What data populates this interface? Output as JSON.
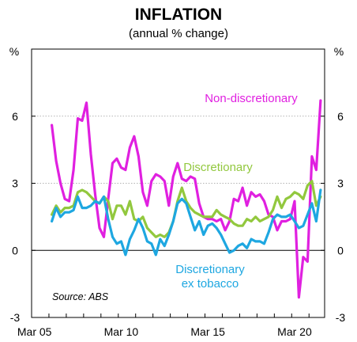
{
  "chart_data": {
    "type": "line",
    "title": "INFLATION",
    "subtitle": "(annual % change)",
    "y_unit_left": "%",
    "y_unit_right": "%",
    "ylim": [
      -3,
      9
    ],
    "yticks": [
      -3,
      0,
      3,
      6
    ],
    "ytick_labels": [
      "-3",
      "0",
      "3",
      "6"
    ],
    "xlim": [
      2005.0,
      2021.9
    ],
    "xticks": [
      {
        "x": 2005.167,
        "label": "Mar 05"
      },
      {
        "x": 2010.167,
        "label": "Mar 10"
      },
      {
        "x": 2015.167,
        "label": "Mar 15"
      },
      {
        "x": 2020.167,
        "label": "Mar 20"
      }
    ],
    "gridlines": [
      3,
      6
    ],
    "source": "Source: ABS",
    "series": [
      {
        "name": "Non-discretionary",
        "color": "#e020e0",
        "label_lines": [
          "Non-discretionary"
        ],
        "x": [
          2006.167,
          2006.417,
          2006.667,
          2006.917,
          2007.167,
          2007.417,
          2007.667,
          2007.917,
          2008.167,
          2008.417,
          2008.667,
          2008.917,
          2009.167,
          2009.417,
          2009.667,
          2009.917,
          2010.167,
          2010.417,
          2010.667,
          2010.917,
          2011.167,
          2011.417,
          2011.667,
          2011.917,
          2012.167,
          2012.417,
          2012.667,
          2012.917,
          2013.167,
          2013.417,
          2013.667,
          2013.917,
          2014.167,
          2014.417,
          2014.667,
          2014.917,
          2015.167,
          2015.417,
          2015.667,
          2015.917,
          2016.167,
          2016.417,
          2016.667,
          2016.917,
          2017.167,
          2017.417,
          2017.667,
          2017.917,
          2018.167,
          2018.417,
          2018.667,
          2018.917,
          2019.167,
          2019.417,
          2019.667,
          2019.917,
          2020.167,
          2020.417,
          2020.667,
          2020.917,
          2021.167,
          2021.417,
          2021.667
        ],
        "values": [
          5.6,
          4.0,
          3.0,
          2.3,
          2.2,
          3.6,
          5.9,
          5.8,
          6.6,
          4.3,
          2.5,
          1.0,
          0.6,
          2.3,
          3.9,
          4.1,
          3.7,
          3.6,
          4.6,
          5.1,
          4.2,
          2.6,
          2.0,
          3.1,
          3.4,
          3.3,
          3.1,
          2.0,
          3.3,
          3.9,
          3.2,
          3.1,
          3.3,
          3.2,
          2.1,
          1.5,
          1.4,
          1.4,
          1.3,
          1.4,
          0.9,
          1.3,
          2.3,
          2.2,
          2.8,
          2.0,
          2.6,
          2.4,
          2.5,
          2.2,
          1.6,
          1.5,
          0.9,
          1.3,
          1.3,
          1.4,
          2.2,
          -2.1,
          -0.3,
          -0.5,
          4.2,
          3.6,
          6.7
        ]
      },
      {
        "name": "Discretionary",
        "color": "#92c83e",
        "label_lines": [
          "Discretionary"
        ],
        "x": [
          2006.167,
          2006.417,
          2006.667,
          2006.917,
          2007.167,
          2007.417,
          2007.667,
          2007.917,
          2008.167,
          2008.417,
          2008.667,
          2008.917,
          2009.167,
          2009.417,
          2009.667,
          2009.917,
          2010.167,
          2010.417,
          2010.667,
          2010.917,
          2011.167,
          2011.417,
          2011.667,
          2011.917,
          2012.167,
          2012.417,
          2012.667,
          2012.917,
          2013.167,
          2013.417,
          2013.667,
          2013.917,
          2014.167,
          2014.417,
          2014.667,
          2014.917,
          2015.167,
          2015.417,
          2015.667,
          2015.917,
          2016.167,
          2016.417,
          2016.667,
          2016.917,
          2017.167,
          2017.417,
          2017.667,
          2017.917,
          2018.167,
          2018.417,
          2018.667,
          2018.917,
          2019.167,
          2019.417,
          2019.667,
          2019.917,
          2020.167,
          2020.417,
          2020.667,
          2020.917,
          2021.167,
          2021.417,
          2021.667
        ],
        "values": [
          1.6,
          2.0,
          1.7,
          1.9,
          1.9,
          2.0,
          2.6,
          2.7,
          2.6,
          2.4,
          2.2,
          2.1,
          2.4,
          2.2,
          1.4,
          2.0,
          2.0,
          1.6,
          2.2,
          1.4,
          1.3,
          1.5,
          1.0,
          0.8,
          0.6,
          0.7,
          0.6,
          0.8,
          1.3,
          2.2,
          2.8,
          2.2,
          1.9,
          1.7,
          1.6,
          1.5,
          1.5,
          1.5,
          1.8,
          1.6,
          1.5,
          1.4,
          1.2,
          1.1,
          1.1,
          1.4,
          1.3,
          1.5,
          1.3,
          1.4,
          1.5,
          1.8,
          2.4,
          1.9,
          2.3,
          2.4,
          2.6,
          2.5,
          2.3,
          2.9,
          3.1,
          2.0,
          2.4
        ]
      },
      {
        "name": "Discretionary ex tobacco",
        "color": "#1ea7e1",
        "label_lines": [
          "Discretionary",
          "ex tobacco"
        ],
        "x": [
          2006.167,
          2006.417,
          2006.667,
          2006.917,
          2007.167,
          2007.417,
          2007.667,
          2007.917,
          2008.167,
          2008.417,
          2008.667,
          2008.917,
          2009.167,
          2009.417,
          2009.667,
          2009.917,
          2010.167,
          2010.417,
          2010.667,
          2010.917,
          2011.167,
          2011.417,
          2011.667,
          2011.917,
          2012.167,
          2012.417,
          2012.667,
          2012.917,
          2013.167,
          2013.417,
          2013.667,
          2013.917,
          2014.167,
          2014.417,
          2014.667,
          2014.917,
          2015.167,
          2015.417,
          2015.667,
          2015.917,
          2016.167,
          2016.417,
          2016.667,
          2016.917,
          2017.167,
          2017.417,
          2017.667,
          2017.917,
          2018.167,
          2018.417,
          2018.667,
          2018.917,
          2019.167,
          2019.417,
          2019.667,
          2019.917,
          2020.167,
          2020.417,
          2020.667,
          2020.917,
          2021.167,
          2021.417,
          2021.667
        ],
        "values": [
          1.3,
          1.9,
          1.5,
          1.7,
          1.7,
          1.8,
          2.4,
          1.9,
          1.9,
          2.0,
          2.2,
          2.1,
          2.4,
          1.4,
          0.6,
          0.3,
          0.4,
          -0.2,
          0.5,
          0.9,
          1.4,
          1.0,
          0.4,
          0.3,
          -0.2,
          0.5,
          0.2,
          0.7,
          1.3,
          2.1,
          2.3,
          2.1,
          1.5,
          0.9,
          1.3,
          0.7,
          1.1,
          1.2,
          1.0,
          0.7,
          0.3,
          -0.1,
          0.0,
          0.2,
          0.3,
          0.1,
          0.5,
          0.4,
          0.4,
          0.3,
          0.8,
          1.4,
          1.6,
          1.5,
          1.5,
          1.6,
          1.3,
          1.0,
          1.1,
          1.6,
          2.1,
          1.3,
          2.7
        ]
      }
    ]
  }
}
